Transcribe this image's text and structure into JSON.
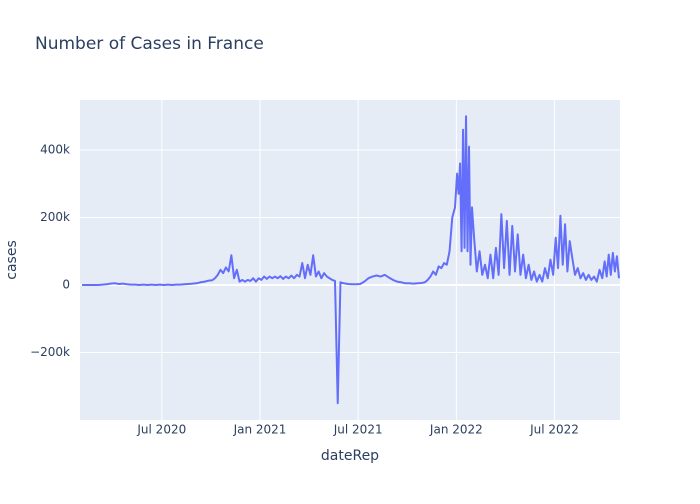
{
  "chart_data": {
    "type": "line",
    "title": "Number of Cases in France",
    "x_label": "dateRep",
    "y_label": "cases",
    "color": "#636efa",
    "grid": true,
    "xlim": [
      "2020-02",
      "2022-11"
    ],
    "xticks": [
      {
        "value": "2020-07",
        "label": "Jul 2020"
      },
      {
        "value": "2021-01",
        "label": "Jan 2021"
      },
      {
        "value": "2021-07",
        "label": "Jul 2021"
      },
      {
        "value": "2022-01",
        "label": "Jan 2022"
      },
      {
        "value": "2022-07",
        "label": "Jul 2022"
      }
    ],
    "ylim": [
      -400000,
      548000
    ],
    "yticks": [
      {
        "value": -200000,
        "label": "−200k"
      },
      0,
      {
        "value": 200000,
        "label": "200k"
      },
      {
        "value": 400000,
        "label": "400k"
      }
    ],
    "x": [
      "2020-02",
      "2020-02",
      "2020-02",
      "2020-02",
      "2020-03",
      "2020-03",
      "2020-03",
      "2020-03",
      "2020-04",
      "2020-04",
      "2020-04",
      "2020-04",
      "2020-05",
      "2020-05",
      "2020-05",
      "2020-05",
      "2020-06",
      "2020-06",
      "2020-06",
      "2020-06",
      "2020-07",
      "2020-07",
      "2020-07",
      "2020-07",
      "2020-08",
      "2020-08",
      "2020-08",
      "2020-08",
      "2020-09",
      "2020-09",
      "2020-09",
      "2020-09",
      "2020-10",
      "2020-10",
      "2020-10",
      "2020-10",
      "2020-10",
      "2020-10",
      "2020-11",
      "2020-11",
      "2020-11",
      "2020-11",
      "2020-11",
      "2020-11",
      "2020-12",
      "2020-12",
      "2020-12",
      "2020-12",
      "2020-12",
      "2020-12",
      "2021-01",
      "2021-01",
      "2021-01",
      "2021-01",
      "2021-01",
      "2021-01",
      "2021-02",
      "2021-02",
      "2021-02",
      "2021-02",
      "2021-02",
      "2021-02",
      "2021-03",
      "2021-03",
      "2021-03",
      "2021-03",
      "2021-03",
      "2021-03",
      "2021-04",
      "2021-04",
      "2021-04",
      "2021-04",
      "2021-04",
      "2021-04",
      "2021-05",
      "2021-05",
      "2021-05",
      "2021-05",
      "2021-05",
      "2021-05",
      "2021-06",
      "2021-06",
      "2021-06",
      "2021-06",
      "2021-07",
      "2021-07",
      "2021-07",
      "2021-07",
      "2021-08",
      "2021-08",
      "2021-08",
      "2021-08",
      "2021-09",
      "2021-09",
      "2021-09",
      "2021-09",
      "2021-10",
      "2021-10",
      "2021-10",
      "2021-10",
      "2021-11",
      "2021-11",
      "2021-11",
      "2021-11",
      "2021-11",
      "2021-11",
      "2021-12",
      "2021-12",
      "2021-12",
      "2021-12",
      "2021-12",
      "2021-12",
      "2022-01",
      "2022-01",
      "2022-01",
      "2022-01",
      "2022-01",
      "2022-01",
      "2022-01",
      "2022-01",
      "2022-01",
      "2022-01",
      "2022-01",
      "2022-02",
      "2022-02",
      "2022-02",
      "2022-02",
      "2022-02",
      "2022-02",
      "2022-03",
      "2022-03",
      "2022-03",
      "2022-03",
      "2022-03",
      "2022-03",
      "2022-04",
      "2022-04",
      "2022-04",
      "2022-04",
      "2022-04",
      "2022-04",
      "2022-05",
      "2022-05",
      "2022-05",
      "2022-05",
      "2022-05",
      "2022-05",
      "2022-06",
      "2022-06",
      "2022-06",
      "2022-06",
      "2022-06",
      "2022-06",
      "2022-07",
      "2022-07",
      "2022-07",
      "2022-07",
      "2022-07",
      "2022-07",
      "2022-07",
      "2022-08",
      "2022-08",
      "2022-08",
      "2022-08",
      "2022-08",
      "2022-08",
      "2022-09",
      "2022-09",
      "2022-09",
      "2022-09",
      "2022-09",
      "2022-09",
      "2022-10",
      "2022-10",
      "2022-10",
      "2022-10",
      "2022-10",
      "2022-10",
      "2022-10",
      "2022-10"
    ],
    "values": [
      0,
      0,
      0,
      0,
      0,
      1000,
      2000,
      4000,
      5000,
      3000,
      4000,
      2000,
      1000,
      1000,
      0,
      1000,
      0,
      1000,
      0,
      1000,
      0,
      1000,
      0,
      1000,
      1000,
      2000,
      3000,
      4000,
      5000,
      8000,
      10000,
      13000,
      14000,
      20000,
      30000,
      45000,
      35000,
      52000,
      40000,
      88000,
      20000,
      45000,
      10000,
      15000,
      10000,
      15000,
      12000,
      20000,
      10000,
      20000,
      15000,
      25000,
      18000,
      25000,
      20000,
      25000,
      20000,
      26000,
      18000,
      25000,
      20000,
      28000,
      20000,
      30000,
      25000,
      65000,
      20000,
      60000,
      30000,
      88000,
      25000,
      40000,
      20000,
      35000,
      25000,
      20000,
      15000,
      12000,
      -350000,
      8000,
      5000,
      3000,
      2000,
      2000,
      3000,
      10000,
      20000,
      25000,
      28000,
      25000,
      30000,
      22000,
      15000,
      10000,
      8000,
      5000,
      5000,
      4000,
      5000,
      6000,
      8000,
      15000,
      25000,
      40000,
      30000,
      55000,
      50000,
      65000,
      60000,
      100000,
      200000,
      230000,
      330000,
      270000,
      360000,
      100000,
      460000,
      110000,
      500000,
      100000,
      410000,
      60000,
      230000,
      140000,
      40000,
      100000,
      30000,
      60000,
      20000,
      90000,
      20000,
      110000,
      30000,
      210000,
      50000,
      190000,
      30000,
      175000,
      40000,
      150000,
      30000,
      90000,
      20000,
      60000,
      15000,
      40000,
      10000,
      30000,
      10000,
      50000,
      20000,
      75000,
      30000,
      140000,
      50000,
      205000,
      60000,
      180000,
      40000,
      130000,
      80000,
      30000,
      50000,
      20000,
      35000,
      15000,
      30000,
      15000,
      25000,
      10000,
      45000,
      20000,
      70000,
      25000,
      90000,
      30000,
      95000,
      40000,
      85000,
      20000
    ]
  }
}
